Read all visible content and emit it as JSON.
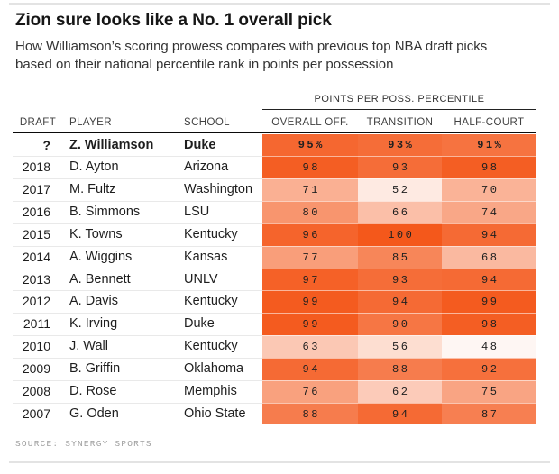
{
  "chart_data": {
    "type": "table",
    "title": "Zion sure looks like a No. 1 overall pick",
    "subtitle": "How Williamson’s scoring prowess compares with previous top NBA draft picks based on their national percentile rank in points per possession",
    "group_header": "POINTS PER POSS. PERCENTILE",
    "columns": [
      "DRAFT",
      "PLAYER",
      "SCHOOL",
      "OVERALL OFF.",
      "TRANSITION",
      "HALF-COURT"
    ],
    "rows": [
      {
        "draft": "?",
        "player": "Z. Williamson",
        "school": "Duke",
        "bold": true,
        "cells": [
          {
            "text": "95%",
            "value": 95
          },
          {
            "text": "93%",
            "value": 93
          },
          {
            "text": "91%",
            "value": 91
          }
        ]
      },
      {
        "draft": "2018",
        "player": "D. Ayton",
        "school": "Arizona",
        "bold": false,
        "cells": [
          {
            "text": "98",
            "value": 98
          },
          {
            "text": "93",
            "value": 93
          },
          {
            "text": "98",
            "value": 98
          }
        ]
      },
      {
        "draft": "2017",
        "player": "M. Fultz",
        "school": "Washington",
        "bold": false,
        "cells": [
          {
            "text": "71",
            "value": 71
          },
          {
            "text": "52",
            "value": 52
          },
          {
            "text": "70",
            "value": 70
          }
        ]
      },
      {
        "draft": "2016",
        "player": "B. Simmons",
        "school": "LSU",
        "bold": false,
        "cells": [
          {
            "text": "80",
            "value": 80
          },
          {
            "text": "66",
            "value": 66
          },
          {
            "text": "74",
            "value": 74
          }
        ]
      },
      {
        "draft": "2015",
        "player": "K. Towns",
        "school": "Kentucky",
        "bold": false,
        "cells": [
          {
            "text": "96",
            "value": 96
          },
          {
            "text": "100",
            "value": 100
          },
          {
            "text": "94",
            "value": 94
          }
        ]
      },
      {
        "draft": "2014",
        "player": "A. Wiggins",
        "school": "Kansas",
        "bold": false,
        "cells": [
          {
            "text": "77",
            "value": 77
          },
          {
            "text": "85",
            "value": 85
          },
          {
            "text": "68",
            "value": 68
          }
        ]
      },
      {
        "draft": "2013",
        "player": "A. Bennett",
        "school": "UNLV",
        "bold": false,
        "cells": [
          {
            "text": "97",
            "value": 97
          },
          {
            "text": "93",
            "value": 93
          },
          {
            "text": "94",
            "value": 94
          }
        ]
      },
      {
        "draft": "2012",
        "player": "A. Davis",
        "school": "Kentucky",
        "bold": false,
        "cells": [
          {
            "text": "99",
            "value": 99
          },
          {
            "text": "94",
            "value": 94
          },
          {
            "text": "99",
            "value": 99
          }
        ]
      },
      {
        "draft": "2011",
        "player": "K. Irving",
        "school": "Duke",
        "bold": false,
        "cells": [
          {
            "text": "99",
            "value": 99
          },
          {
            "text": "90",
            "value": 90
          },
          {
            "text": "98",
            "value": 98
          }
        ]
      },
      {
        "draft": "2010",
        "player": "J. Wall",
        "school": "Kentucky",
        "bold": false,
        "cells": [
          {
            "text": "63",
            "value": 63
          },
          {
            "text": "56",
            "value": 56
          },
          {
            "text": "48",
            "value": 48
          }
        ]
      },
      {
        "draft": "2009",
        "player": "B. Griffin",
        "school": "Oklahoma",
        "bold": false,
        "cells": [
          {
            "text": "94",
            "value": 94
          },
          {
            "text": "88",
            "value": 88
          },
          {
            "text": "92",
            "value": 92
          }
        ]
      },
      {
        "draft": "2008",
        "player": "D. Rose",
        "school": "Memphis",
        "bold": false,
        "cells": [
          {
            "text": "76",
            "value": 76
          },
          {
            "text": "62",
            "value": 62
          },
          {
            "text": "75",
            "value": 75
          }
        ]
      },
      {
        "draft": "2007",
        "player": "G. Oden",
        "school": "Ohio State",
        "bold": false,
        "cells": [
          {
            "text": "88",
            "value": 88
          },
          {
            "text": "94",
            "value": 94
          },
          {
            "text": "87",
            "value": 87
          }
        ]
      }
    ],
    "source": "SOURCE: SYNERGY SPORTS",
    "color_scale": {
      "low_color": "#ffffff",
      "high_color": "#f4581b",
      "low_value": 45,
      "high_value": 100
    },
    "text_color": "#202020",
    "legend_position": "none"
  }
}
